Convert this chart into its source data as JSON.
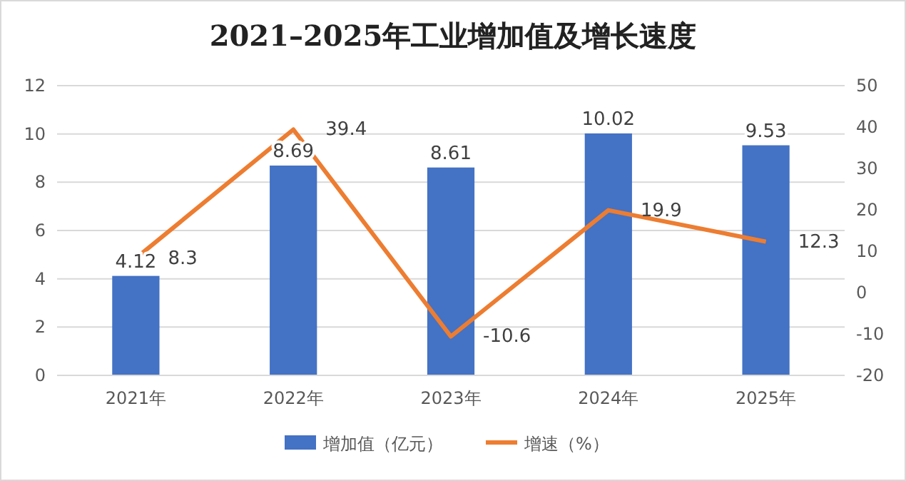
{
  "chart_data": {
    "type": "bar",
    "title": "2021–2025年工业增加值及增长速度",
    "categories": [
      "2021年",
      "2022年",
      "2023年",
      "2024年",
      "2025年"
    ],
    "series": [
      {
        "name": "增加值（亿元）",
        "color": "#4472c4",
        "values": [
          4.12,
          8.69,
          8.61,
          10.02,
          9.53
        ]
      },
      {
        "name": "增速（%）",
        "type": "line",
        "axis": "y2",
        "color": "#ed7d31",
        "values": [
          8.3,
          39.4,
          -10.6,
          19.9,
          12.3
        ]
      }
    ],
    "ylim": [
      0,
      12
    ],
    "yticks": [
      0,
      2,
      4,
      6,
      8,
      10,
      12
    ],
    "y2lim": [
      -20,
      50
    ],
    "y2ticks": [
      -20,
      -10,
      0,
      10,
      20,
      30,
      40,
      50
    ],
    "grid": "y",
    "legend": "bottom",
    "data_labels": true,
    "marker": "none"
  }
}
